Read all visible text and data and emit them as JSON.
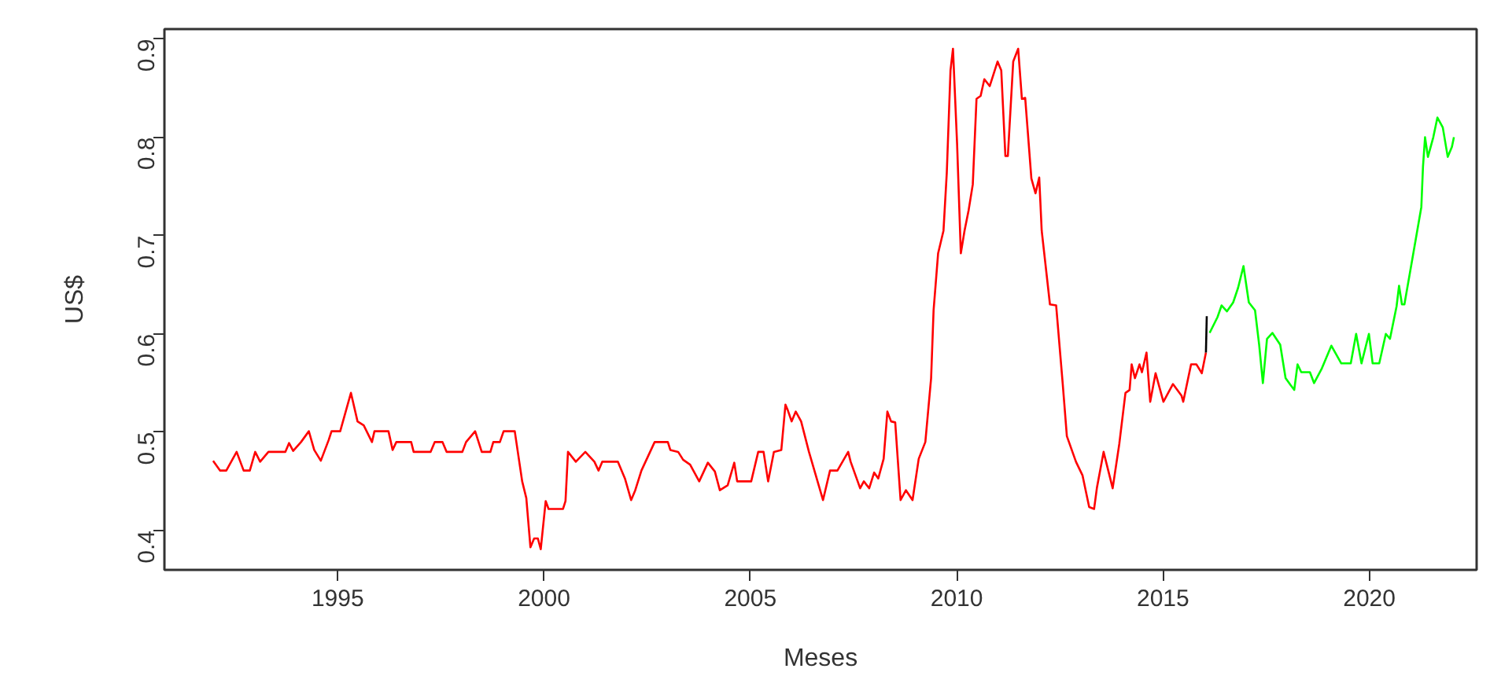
{
  "chart_data": {
    "type": "line",
    "xlabel": "Meses",
    "ylabel": "US$",
    "xlim": [
      1990.8,
      2022.6
    ],
    "ylim": [
      0.36,
      0.91
    ],
    "xticks": [
      1995,
      2000,
      2005,
      2010,
      2015,
      2020
    ],
    "yticks": [
      0.4,
      0.5,
      0.6,
      0.7,
      0.8,
      0.9
    ],
    "line_style": "solid",
    "series": [
      {
        "color": "#ff0000",
        "x": [
          1991.98,
          1992.15,
          1992.3,
          1992.55,
          1992.72,
          1992.87,
          1993.0,
          1993.12,
          1993.32,
          1993.73,
          1993.82,
          1993.92,
          1994.11,
          1994.3,
          1994.43,
          1994.59,
          1994.78,
          1994.85,
          1995.06,
          1995.32,
          1995.48,
          1995.63,
          1995.83,
          1995.89,
          1996.23,
          1996.33,
          1996.42,
          1996.78,
          1996.84,
          1997.25,
          1997.35,
          1997.54,
          1997.64,
          1998.02,
          1998.11,
          1998.33,
          1998.49,
          1998.7,
          1998.77,
          1998.93,
          1999.02,
          1999.29,
          1999.47,
          1999.57,
          1999.67,
          1999.76,
          1999.85,
          1999.92,
          2000.04,
          2000.11,
          2000.46,
          2000.52,
          2000.58,
          2000.77,
          2001.0,
          2001.22,
          2001.32,
          2001.41,
          2001.79,
          2001.96,
          2002.11,
          2002.21,
          2002.36,
          2002.68,
          2003.0,
          2003.06,
          2003.25,
          2003.37,
          2003.54,
          2003.76,
          2003.97,
          2004.14,
          2004.26,
          2004.45,
          2004.61,
          2004.68,
          2005.02,
          2005.19,
          2005.32,
          2005.43,
          2005.57,
          2005.75,
          2005.85,
          2005.91,
          2006.0,
          2006.1,
          2006.23,
          2006.42,
          2006.76,
          2006.93,
          2007.11,
          2007.37,
          2007.43,
          2007.66,
          2007.75,
          2007.88,
          2008.0,
          2008.1,
          2008.23,
          2008.32,
          2008.41,
          2008.51,
          2008.64,
          2008.77,
          2008.93,
          2009.08,
          2009.24,
          2009.38,
          2009.44,
          2009.55,
          2009.68,
          2009.76,
          2009.85,
          2009.91,
          2010.01,
          2010.1,
          2010.19,
          2010.29,
          2010.39,
          2010.48,
          2010.58,
          2010.67,
          2010.8,
          2010.99,
          2011.08,
          2011.18,
          2011.24,
          2011.37,
          2011.49,
          2011.58,
          2011.66,
          2011.81,
          2011.91,
          2012.0,
          2012.06,
          2012.26,
          2012.41,
          2012.57,
          2012.67,
          2012.89,
          2013.05,
          2013.21,
          2013.33,
          2013.4,
          2013.56,
          2013.78,
          2013.94,
          2014.09,
          2014.19,
          2014.24,
          2014.32,
          2014.43,
          2014.49,
          2014.6,
          2014.69,
          2014.82,
          2015.01,
          2015.24,
          2015.45,
          2015.49,
          2015.68,
          2015.81,
          2015.94,
          2016.04
        ],
        "values": [
          0.471,
          0.461,
          0.461,
          0.48,
          0.461,
          0.461,
          0.48,
          0.47,
          0.48,
          0.48,
          0.489,
          0.481,
          0.49,
          0.501,
          0.482,
          0.471,
          0.492,
          0.501,
          0.501,
          0.54,
          0.511,
          0.507,
          0.49,
          0.501,
          0.501,
          0.482,
          0.49,
          0.49,
          0.48,
          0.48,
          0.49,
          0.49,
          0.48,
          0.48,
          0.49,
          0.501,
          0.48,
          0.48,
          0.49,
          0.49,
          0.501,
          0.501,
          0.45,
          0.433,
          0.383,
          0.392,
          0.392,
          0.381,
          0.43,
          0.422,
          0.422,
          0.43,
          0.48,
          0.47,
          0.48,
          0.47,
          0.461,
          0.47,
          0.47,
          0.453,
          0.431,
          0.441,
          0.461,
          0.49,
          0.49,
          0.482,
          0.48,
          0.472,
          0.467,
          0.45,
          0.469,
          0.46,
          0.441,
          0.446,
          0.469,
          0.45,
          0.45,
          0.48,
          0.48,
          0.45,
          0.48,
          0.482,
          0.528,
          0.522,
          0.511,
          0.521,
          0.511,
          0.48,
          0.431,
          0.461,
          0.461,
          0.48,
          0.47,
          0.443,
          0.45,
          0.443,
          0.459,
          0.453,
          0.473,
          0.521,
          0.511,
          0.51,
          0.431,
          0.441,
          0.431,
          0.473,
          0.49,
          0.555,
          0.624,
          0.682,
          0.705,
          0.764,
          0.868,
          0.89,
          0.793,
          0.682,
          0.705,
          0.726,
          0.752,
          0.839,
          0.842,
          0.859,
          0.852,
          0.877,
          0.868,
          0.781,
          0.781,
          0.877,
          0.89,
          0.839,
          0.84,
          0.758,
          0.743,
          0.759,
          0.705,
          0.63,
          0.629,
          0.549,
          0.496,
          0.47,
          0.456,
          0.424,
          0.422,
          0.444,
          0.48,
          0.443,
          0.488,
          0.54,
          0.543,
          0.569,
          0.555,
          0.569,
          0.561,
          0.581,
          0.531,
          0.56,
          0.531,
          0.549,
          0.537,
          0.531,
          0.569,
          0.569,
          0.56,
          0.581
        ]
      },
      {
        "color": "#000000",
        "x": [
          2016.04,
          2016.06
        ],
        "values": [
          0.581,
          0.618
        ]
      },
      {
        "color": "#00ff00",
        "x": [
          2016.13,
          2016.32,
          2016.42,
          2016.55,
          2016.7,
          2016.82,
          2016.95,
          2017.08,
          2017.23,
          2017.33,
          2017.42,
          2017.52,
          2017.65,
          2017.84,
          2017.97,
          2018.09,
          2018.18,
          2018.26,
          2018.35,
          2018.56,
          2018.66,
          2018.85,
          2019.08,
          2019.32,
          2019.55,
          2019.68,
          2019.81,
          2019.99,
          2020.08,
          2020.24,
          2020.4,
          2020.5,
          2020.66,
          2020.72,
          2020.79,
          2020.85,
          2021.07,
          2021.26,
          2021.3,
          2021.35,
          2021.42,
          2021.55,
          2021.65,
          2021.78,
          2021.9,
          2022.0,
          2022.05
        ],
        "values": [
          0.601,
          0.617,
          0.629,
          0.623,
          0.632,
          0.647,
          0.669,
          0.632,
          0.624,
          0.589,
          0.55,
          0.595,
          0.601,
          0.589,
          0.555,
          0.548,
          0.543,
          0.569,
          0.561,
          0.561,
          0.55,
          0.565,
          0.588,
          0.57,
          0.57,
          0.6,
          0.57,
          0.6,
          0.57,
          0.57,
          0.6,
          0.595,
          0.628,
          0.649,
          0.63,
          0.63,
          0.683,
          0.729,
          0.77,
          0.8,
          0.78,
          0.8,
          0.82,
          0.81,
          0.78,
          0.79,
          0.8
        ]
      }
    ]
  }
}
